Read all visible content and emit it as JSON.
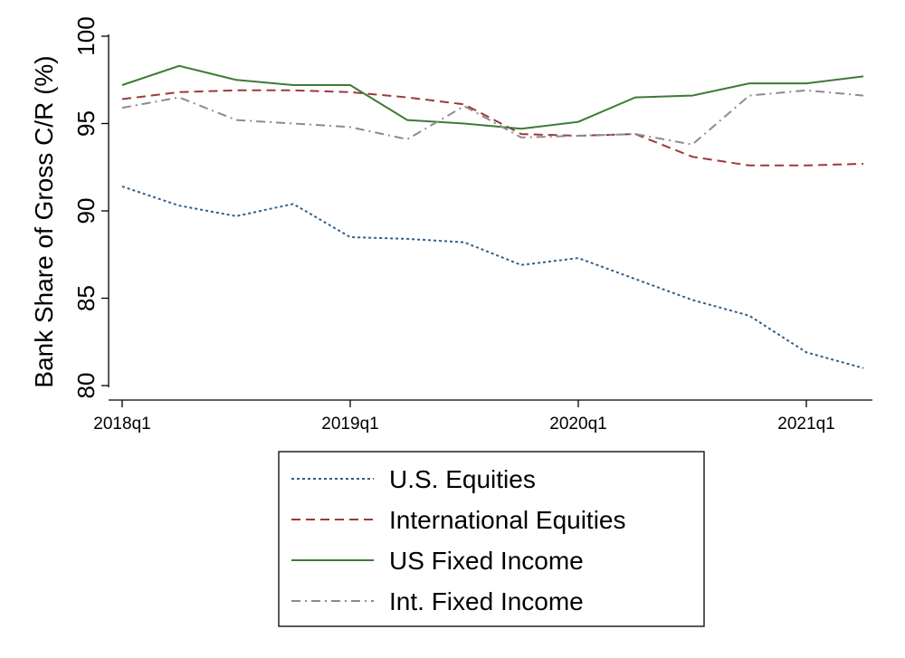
{
  "chart_data": {
    "type": "line",
    "title": "",
    "xlabel": "",
    "ylabel": "Bank Share of Gross C/R (%)",
    "x": [
      "2018q1",
      "2018q2",
      "2018q3",
      "2018q4",
      "2019q1",
      "2019q2",
      "2019q3",
      "2019q4",
      "2020q1",
      "2020q2",
      "2020q3",
      "2020q4",
      "2021q1",
      "2021q2"
    ],
    "x_tick_labels": [
      "2018q1",
      "2019q1",
      "2020q1",
      "2021q1"
    ],
    "y_ticks": [
      80,
      85,
      90,
      95,
      100
    ],
    "ylim": [
      80,
      100
    ],
    "grid": false,
    "legend_position": "bottom",
    "series": [
      {
        "name": "U.S. Equities",
        "color": "#2f5f8a",
        "dash": "dotted",
        "values": [
          91.4,
          90.3,
          89.7,
          90.4,
          88.5,
          88.4,
          88.2,
          86.9,
          87.3,
          86.1,
          84.9,
          84.0,
          81.9,
          81.0
        ]
      },
      {
        "name": "International Equities",
        "color": "#9b3a3a",
        "dash": "dashed",
        "values": [
          96.4,
          96.8,
          96.9,
          96.9,
          96.8,
          96.5,
          96.1,
          94.4,
          94.3,
          94.4,
          93.1,
          92.6,
          92.6,
          92.7
        ]
      },
      {
        "name": "US Fixed Income",
        "color": "#3e7a36",
        "dash": "solid",
        "values": [
          97.2,
          98.3,
          97.5,
          97.2,
          97.2,
          95.2,
          95.0,
          94.7,
          95.1,
          96.5,
          96.6,
          97.3,
          97.3,
          97.7
        ]
      },
      {
        "name": "Int. Fixed Income",
        "color": "#8c8c8c",
        "dash": "dashdot",
        "values": [
          95.9,
          96.5,
          95.2,
          95.0,
          94.8,
          94.1,
          96.0,
          94.2,
          94.3,
          94.4,
          93.8,
          96.6,
          96.9,
          96.6
        ]
      }
    ]
  }
}
